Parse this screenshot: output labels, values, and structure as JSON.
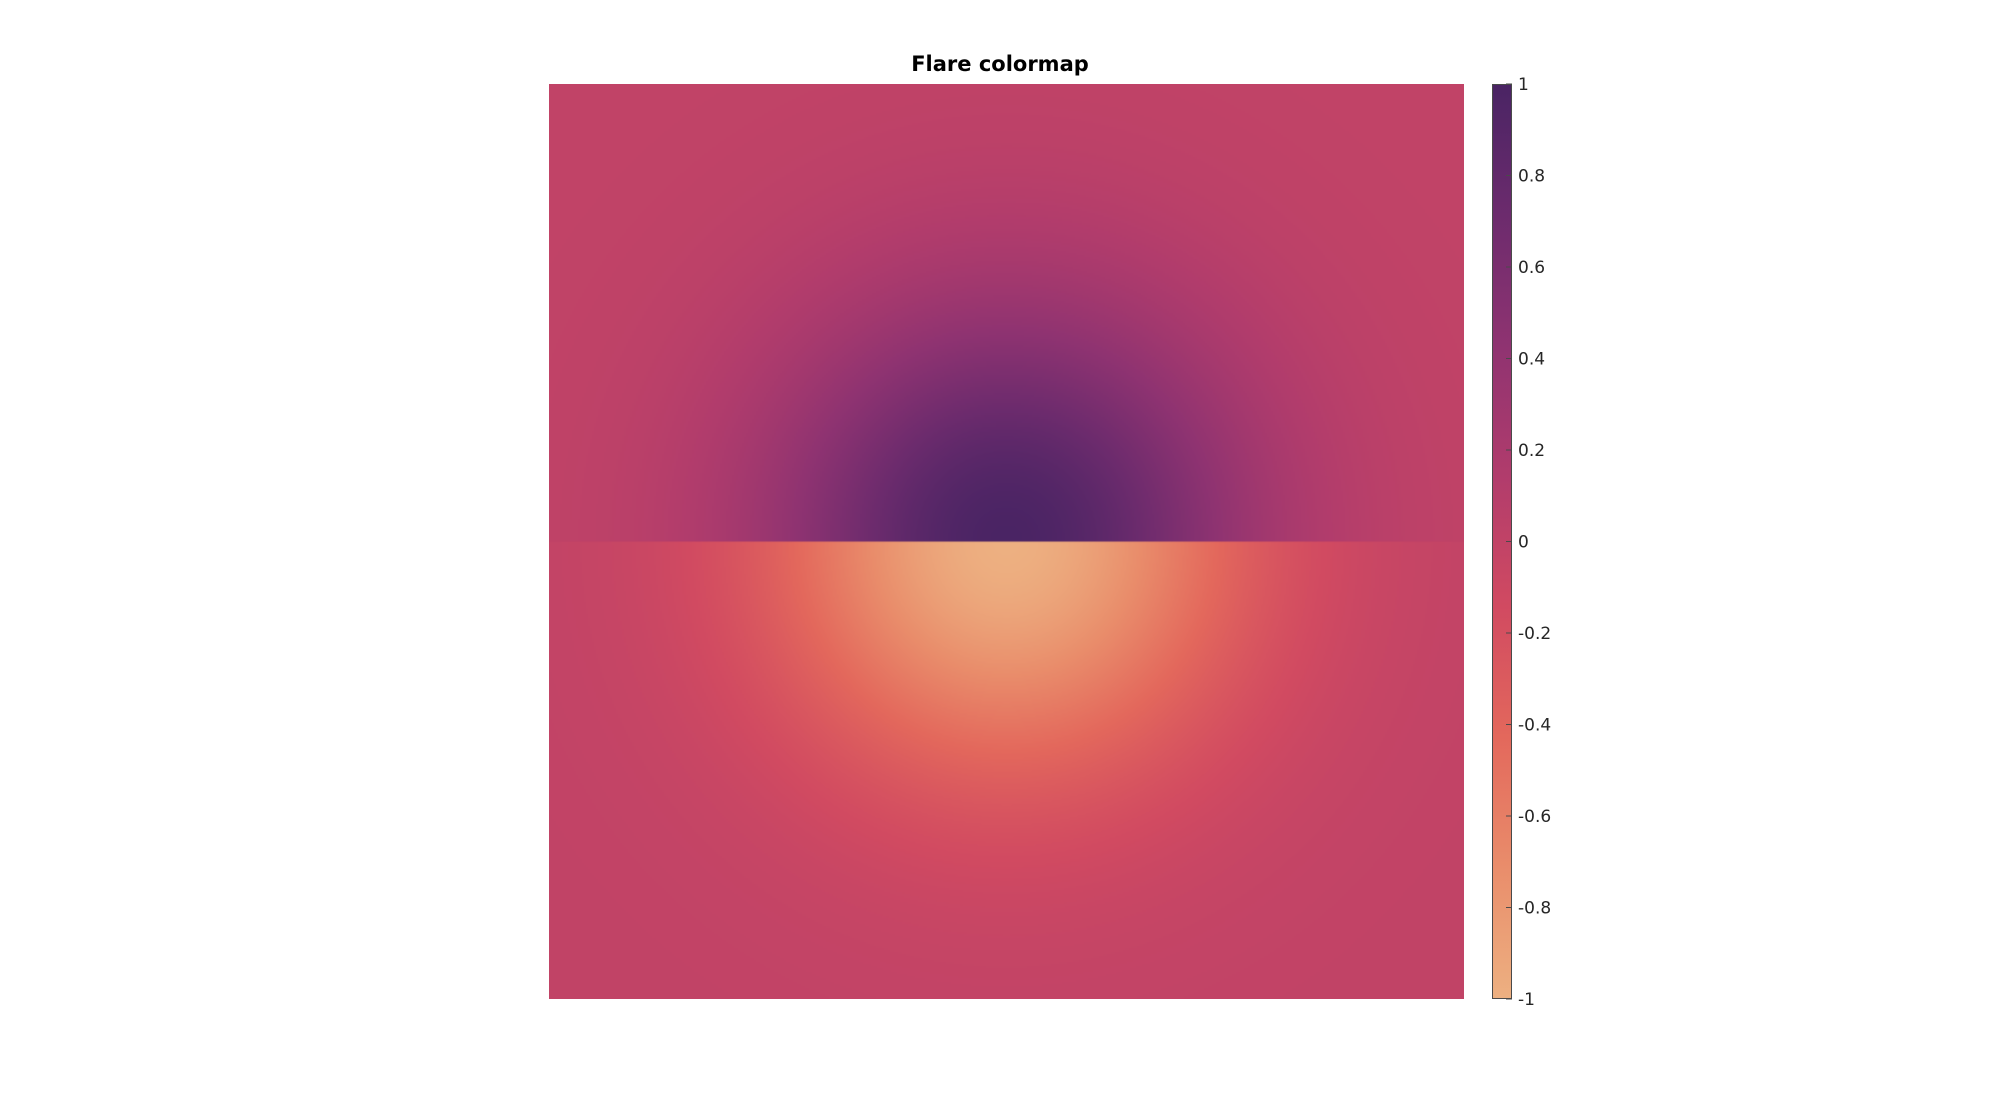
{
  "chart_data": {
    "type": "heatmap",
    "title": "Flare colormap",
    "xlabel": "",
    "ylabel": "",
    "colormap": "flare",
    "colormap_stops": [
      "#edb081",
      "#e98d6b",
      "#e3685c",
      "#d14a61",
      "#b13c6c",
      "#8f3371",
      "#6c2b6d",
      "#4a2464"
    ],
    "clim": [
      -1,
      1
    ],
    "colorbar": {
      "position": "right",
      "ticks": [
        1,
        0.8,
        0.6,
        0.4,
        0.2,
        0,
        -0.2,
        -0.4,
        -0.6,
        -0.8,
        -1
      ],
      "tick_labels": [
        "1",
        "0.8",
        "0.6",
        "0.4",
        "0.2",
        "0",
        "-0.2",
        "-0.4",
        "-0.6",
        "-0.8",
        "-1"
      ]
    },
    "field": {
      "description": "value = sign(y) * exp(-(x^2 + y^2)); positive peak above the midline, negative trough below",
      "peak": 1,
      "trough": -1,
      "background": 0
    },
    "grid": false
  }
}
